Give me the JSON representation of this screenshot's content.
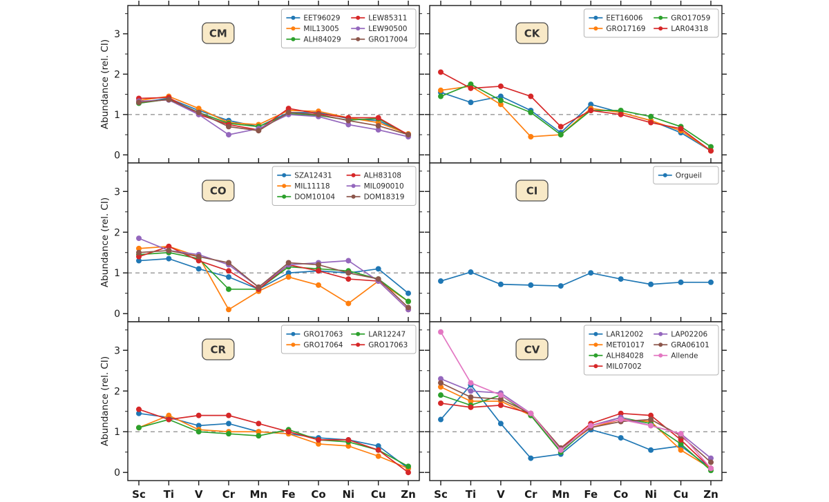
{
  "figure": {
    "ylabel": "Abundance (rel.  CI)",
    "categories": [
      "Sc",
      "Ti",
      "V",
      "Cr",
      "Mn",
      "Fe",
      "Co",
      "Ni",
      "Cu",
      "Zn"
    ],
    "yticks": [
      0,
      1,
      2,
      3
    ],
    "ylim": [
      -0.2,
      3.7
    ],
    "ref_line_y": 1,
    "background": "#ffffff",
    "ref_line_color": "#8a8a8a",
    "axis_color": "#1a1a1a",
    "label_box_fill": "#f8e9c7",
    "label_box_stroke": "#4d4d4d",
    "grid": false,
    "legend_position": "top-right"
  },
  "chart_data": [
    {
      "type": "line",
      "title": "CM",
      "grid_position": [
        0,
        0
      ],
      "legend_columns": 2,
      "label_x_frac": 0.31,
      "xlabel": "",
      "series": [
        {
          "name": "EET96029",
          "color": "#1f77b4",
          "values": [
            1.3,
            1.4,
            1.1,
            0.85,
            0.7,
            1.05,
            1.05,
            0.9,
            0.85,
            0.5
          ]
        },
        {
          "name": "MIL13005",
          "color": "#ff7f0e",
          "values": [
            1.35,
            1.45,
            1.15,
            0.8,
            0.75,
            1.1,
            1.08,
            0.92,
            0.8,
            0.52
          ]
        },
        {
          "name": "ALH84029",
          "color": "#2ca02c",
          "values": [
            1.28,
            1.38,
            1.05,
            0.78,
            0.7,
            1.02,
            0.98,
            0.86,
            0.9,
            0.5
          ]
        },
        {
          "name": "LEW85311",
          "color": "#d62728",
          "values": [
            1.4,
            1.42,
            1.0,
            0.75,
            0.62,
            1.15,
            1.02,
            0.92,
            0.92,
            0.5
          ]
        },
        {
          "name": "LEW90500",
          "color": "#9467bd",
          "values": [
            1.33,
            1.36,
            1.0,
            0.5,
            0.65,
            1.0,
            0.95,
            0.75,
            0.62,
            0.45
          ]
        },
        {
          "name": "GRO17004",
          "color": "#8c564b",
          "values": [
            1.3,
            1.37,
            1.05,
            0.7,
            0.6,
            1.05,
            1.0,
            0.85,
            0.72,
            0.5
          ]
        }
      ]
    },
    {
      "type": "line",
      "title": "CK",
      "grid_position": [
        0,
        1
      ],
      "legend_columns": 2,
      "label_x_frac": 0.35,
      "xlabel": "",
      "series": [
        {
          "name": "EET16006",
          "color": "#1f77b4",
          "values": [
            1.55,
            1.3,
            1.45,
            1.1,
            0.55,
            1.25,
            1.05,
            0.85,
            0.55,
            0.1
          ]
        },
        {
          "name": "GRO17169",
          "color": "#ff7f0e",
          "values": [
            1.6,
            1.7,
            1.25,
            0.45,
            0.5,
            1.15,
            1.05,
            0.85,
            0.6,
            0.1
          ]
        },
        {
          "name": "GRO17059",
          "color": "#2ca02c",
          "values": [
            1.45,
            1.75,
            1.35,
            1.05,
            0.5,
            1.1,
            1.1,
            0.95,
            0.7,
            0.2
          ]
        },
        {
          "name": "LAR04318",
          "color": "#d62728",
          "values": [
            2.05,
            1.65,
            1.7,
            1.45,
            0.7,
            1.1,
            1.0,
            0.8,
            0.65,
            0.1
          ]
        }
      ]
    },
    {
      "type": "line",
      "title": "CO",
      "grid_position": [
        1,
        0
      ],
      "legend_columns": 2,
      "label_x_frac": 0.31,
      "xlabel": "",
      "series": [
        {
          "name": "SZA12431",
          "color": "#1f77b4",
          "values": [
            1.3,
            1.35,
            1.1,
            0.9,
            0.6,
            1.0,
            1.05,
            1.0,
            1.1,
            0.5
          ]
        },
        {
          "name": "MIL11118",
          "color": "#ff7f0e",
          "values": [
            1.6,
            1.65,
            1.4,
            0.1,
            0.55,
            0.9,
            0.7,
            0.25,
            0.8,
            0.3
          ]
        },
        {
          "name": "DOM10104",
          "color": "#2ca02c",
          "values": [
            1.45,
            1.5,
            1.35,
            0.6,
            0.6,
            1.15,
            1.1,
            1.05,
            0.85,
            0.3
          ]
        },
        {
          "name": "ALH83108",
          "color": "#d62728",
          "values": [
            1.4,
            1.65,
            1.3,
            1.05,
            0.6,
            1.2,
            1.05,
            0.85,
            0.8,
            0.1
          ]
        },
        {
          "name": "MIL090010",
          "color": "#9467bd",
          "values": [
            1.85,
            1.55,
            1.45,
            1.2,
            0.65,
            1.2,
            1.25,
            1.3,
            0.8,
            0.1
          ]
        },
        {
          "name": "DOM18319",
          "color": "#8c564b",
          "values": [
            1.5,
            1.55,
            1.4,
            1.25,
            0.65,
            1.25,
            1.2,
            1.0,
            0.85,
            0.15
          ]
        }
      ]
    },
    {
      "type": "line",
      "title": "CI",
      "grid_position": [
        1,
        1
      ],
      "legend_columns": 1,
      "label_x_frac": 0.35,
      "xlabel": "",
      "series": [
        {
          "name": "Orgueil",
          "color": "#1f77b4",
          "values": [
            0.8,
            1.02,
            0.72,
            0.7,
            0.68,
            1.0,
            0.85,
            0.72,
            0.77,
            0.77
          ]
        }
      ]
    },
    {
      "type": "line",
      "title": "CR",
      "grid_position": [
        2,
        0
      ],
      "legend_columns": 2,
      "label_x_frac": 0.31,
      "xlabel": "",
      "series": [
        {
          "name": "GRO17063",
          "color": "#1f77b4",
          "values": [
            1.45,
            1.35,
            1.15,
            1.2,
            1.0,
            0.95,
            0.85,
            0.8,
            0.65,
            0.1
          ]
        },
        {
          "name": "GRO17064",
          "color": "#ff7f0e",
          "values": [
            1.1,
            1.4,
            1.05,
            1.0,
            1.0,
            0.95,
            0.7,
            0.65,
            0.4,
            0.1
          ]
        },
        {
          "name": "LAR12247",
          "color": "#2ca02c",
          "values": [
            1.1,
            1.3,
            1.0,
            0.95,
            0.9,
            1.05,
            0.8,
            0.75,
            0.55,
            0.15
          ]
        },
        {
          "name": "GRO17063",
          "color": "#d62728",
          "values": [
            1.55,
            1.3,
            1.4,
            1.4,
            1.2,
            1.0,
            0.8,
            0.8,
            0.55,
            0.0
          ]
        }
      ]
    },
    {
      "type": "line",
      "title": "CV",
      "grid_position": [
        2,
        1
      ],
      "legend_columns": 2,
      "label_x_frac": 0.35,
      "xlabel": "",
      "series": [
        {
          "name": "LAR12002",
          "color": "#1f77b4",
          "values": [
            1.3,
            2.15,
            1.2,
            0.35,
            0.45,
            1.05,
            0.85,
            0.55,
            0.65,
            0.1
          ]
        },
        {
          "name": "MET01017",
          "color": "#ff7f0e",
          "values": [
            2.1,
            1.75,
            1.75,
            1.4,
            0.55,
            1.1,
            1.3,
            1.25,
            0.55,
            0.1
          ]
        },
        {
          "name": "ALH84028",
          "color": "#2ca02c",
          "values": [
            1.9,
            1.65,
            1.9,
            1.4,
            0.5,
            1.15,
            1.35,
            1.2,
            0.7,
            0.05
          ]
        },
        {
          "name": "MIL07002",
          "color": "#d62728",
          "values": [
            1.7,
            1.6,
            1.65,
            1.45,
            0.6,
            1.2,
            1.45,
            1.4,
            0.8,
            0.1
          ]
        },
        {
          "name": "LAP02206",
          "color": "#9467bd",
          "values": [
            2.3,
            2.0,
            1.95,
            1.45,
            0.55,
            1.15,
            1.35,
            1.15,
            0.95,
            0.35
          ]
        },
        {
          "name": "GRA06101",
          "color": "#8c564b",
          "values": [
            2.2,
            1.85,
            1.8,
            1.45,
            0.6,
            1.1,
            1.25,
            1.3,
            0.9,
            0.25
          ]
        },
        {
          "name": "Allende",
          "color": "#e377c2",
          "values": [
            3.45,
            2.2,
            1.9,
            1.45,
            0.55,
            1.15,
            1.3,
            1.15,
            0.95,
            0.1
          ]
        }
      ]
    }
  ]
}
